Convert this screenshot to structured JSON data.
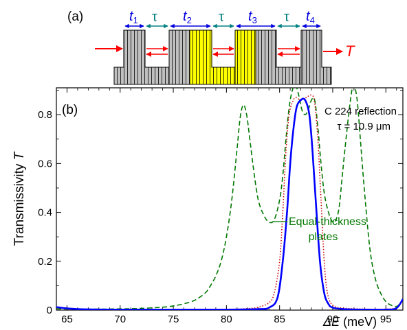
{
  "panel_a": {
    "label": "(a)",
    "thickness_labels": [
      {
        "sym": "t",
        "sub": "1"
      },
      {
        "sym": "t",
        "sub": "2"
      },
      {
        "sym": "t",
        "sub": "3"
      },
      {
        "sym": "t",
        "sub": "4"
      }
    ],
    "gap_label": "τ",
    "output_label": "T",
    "colors": {
      "crystal": "#c0c0c0",
      "highlight": "#ffff00",
      "arrow": "#ff0000",
      "thickness": "#0000dd",
      "gap": "#008080"
    }
  },
  "panel_b_label": "(b)",
  "chart_data": {
    "type": "line",
    "ylabel_main": "Transmissivity ",
    "ylabel_sym": "T",
    "xlabel_sym": "ΔE",
    "xlabel_unit": " (meV)",
    "annotation_line1": "C 224 reflection",
    "annotation_line2": "τ = 10.9 μm",
    "callout_line1": "Equal-thickness",
    "callout_line2": "plates",
    "xlim": [
      64,
      96.6
    ],
    "ylim": [
      0,
      0.91
    ],
    "xticks": [
      65,
      70,
      75,
      80,
      85,
      90,
      95
    ],
    "yticks": [
      0,
      0.2,
      0.4,
      0.6,
      0.8
    ],
    "xtick_labels": [
      "65",
      "70",
      "75",
      "80",
      "85",
      "90",
      "95"
    ],
    "ytick_labels": [
      "0",
      "0.2",
      "0.4",
      "0.6",
      "0.8"
    ],
    "series": [
      {
        "style": "dashed",
        "color": "#007700",
        "x": [
          64,
          66,
          68,
          70,
          72,
          74,
          75,
          76,
          77,
          78,
          78.5,
          79,
          79.5,
          80,
          80.5,
          81,
          81.3,
          81.6,
          81.9,
          82.2,
          82.6,
          83,
          83.5,
          84,
          84.5,
          85,
          85.3,
          85.6,
          85.9,
          86.2,
          86.5,
          86.8,
          87.1,
          87.4,
          87.7,
          88,
          88.3,
          88.6,
          88.9,
          89.2,
          89.6,
          90,
          90.3,
          90.6,
          90.9,
          91.2,
          91.5,
          91.8,
          92,
          92.3,
          92.6,
          93,
          93.5,
          94,
          94.5,
          95,
          95.5,
          96,
          96.3,
          96.6
        ],
        "y": [
          0.005,
          0.004,
          0.004,
          0.005,
          0.007,
          0.012,
          0.017,
          0.026,
          0.04,
          0.07,
          0.1,
          0.14,
          0.2,
          0.3,
          0.45,
          0.66,
          0.79,
          0.84,
          0.8,
          0.7,
          0.56,
          0.45,
          0.39,
          0.36,
          0.37,
          0.45,
          0.55,
          0.7,
          0.83,
          0.9,
          0.92,
          0.88,
          0.82,
          0.8,
          0.82,
          0.86,
          0.86,
          0.75,
          0.6,
          0.48,
          0.4,
          0.36,
          0.37,
          0.42,
          0.55,
          0.68,
          0.8,
          0.9,
          0.92,
          0.86,
          0.7,
          0.48,
          0.25,
          0.13,
          0.07,
          0.035,
          0.02,
          0.015,
          0.025,
          0.04
        ]
      },
      {
        "style": "dotted",
        "color": "#cc0000",
        "x": [
          64,
          66,
          70,
          75,
          80,
          82,
          83,
          84,
          84.5,
          85,
          85.3,
          85.6,
          85.9,
          86.2,
          86.5,
          87,
          87.5,
          88,
          88.3,
          88.6,
          88.9,
          89.2,
          89.5,
          90,
          91,
          93,
          95,
          96,
          96.6
        ],
        "y": [
          0.01,
          0.004,
          0.002,
          0.002,
          0.003,
          0.006,
          0.012,
          0.03,
          0.07,
          0.2,
          0.4,
          0.65,
          0.8,
          0.85,
          0.87,
          0.86,
          0.87,
          0.88,
          0.85,
          0.7,
          0.45,
          0.2,
          0.07,
          0.02,
          0.008,
          0.004,
          0.004,
          0.01,
          0.04
        ]
      },
      {
        "style": "solid",
        "color": "#0000ff",
        "x": [
          64,
          66,
          70,
          75,
          80,
          83,
          84,
          84.8,
          85.3,
          85.7,
          86,
          86.3,
          86.6,
          87,
          87.4,
          87.8,
          88.1,
          88.4,
          88.8,
          89.2,
          89.6,
          90,
          91,
          93,
          95,
          96,
          96.6
        ],
        "y": [
          0.012,
          0.004,
          0.002,
          0.002,
          0.002,
          0.004,
          0.01,
          0.05,
          0.2,
          0.4,
          0.6,
          0.74,
          0.83,
          0.86,
          0.86,
          0.8,
          0.65,
          0.45,
          0.2,
          0.07,
          0.025,
          0.01,
          0.004,
          0.002,
          0.002,
          0.008,
          0.045
        ]
      }
    ]
  }
}
